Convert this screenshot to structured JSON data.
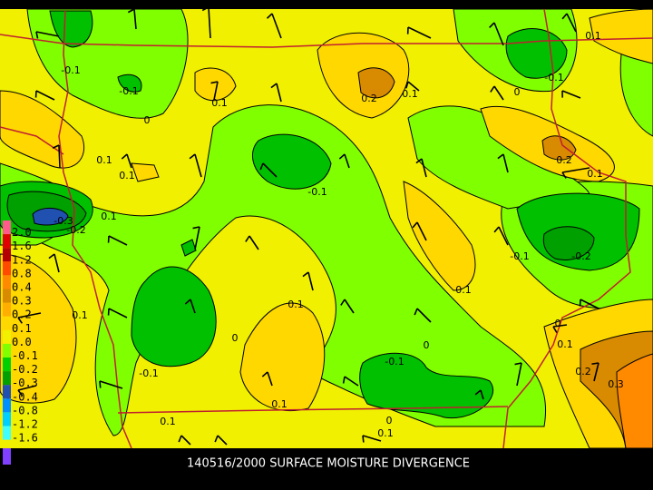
{
  "title": "140516/2000 SURFACE MOISTURE DIVERGENCE",
  "legend": {
    "labels": [
      "2.0",
      "1.6",
      "1.2",
      "0.8",
      "0.4",
      "0.3",
      "0.2",
      "0.1",
      "0.0",
      "-0.1",
      "-0.2",
      "-0.3",
      "-0.4",
      "-0.8",
      "-1.2",
      "-1.6"
    ],
    "colors": [
      "#ff5a8c",
      "#e00000",
      "#b40000",
      "#ff4a00",
      "#ff8a00",
      "#d88a00",
      "#ffae00",
      "#ffd800",
      "#f0f000",
      "#80ff00",
      "#00d000",
      "#00a000",
      "#2050b0",
      "#0090ff",
      "#00d0ff",
      "#40ffff"
    ]
  },
  "contour_labels": [
    "0.1",
    "-0.1",
    "-0.1",
    "0.1",
    "0.2",
    "0.1",
    "0",
    "-0.1",
    "0",
    "0.1",
    "0.1",
    "0.2",
    "0.1",
    "-0.1",
    "0.1",
    "-0.3",
    "-0.2",
    "-0.1",
    "-0.2",
    "0.1",
    "0.1",
    "0.1",
    "0",
    "0",
    "0",
    "0.1",
    "-0.1",
    "-0.1",
    "0.2",
    "0.3",
    "0.1",
    "0.1",
    "0",
    "0.1"
  ]
}
